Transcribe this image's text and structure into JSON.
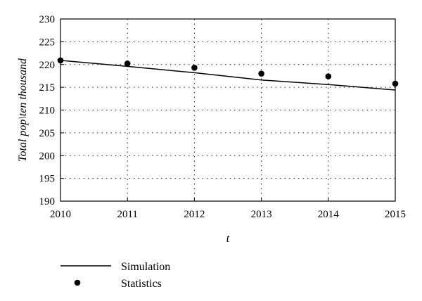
{
  "chart_data": {
    "type": "line",
    "title": "",
    "xlabel": "t",
    "ylabel": "Total pop\\ten thousand",
    "xlim": [
      2010,
      2015
    ],
    "ylim": [
      190,
      230
    ],
    "x_ticks": [
      "2010",
      "2011",
      "2012",
      "2013",
      "2014",
      "2015"
    ],
    "y_ticks": [
      "190",
      "195",
      "200",
      "205",
      "210",
      "215",
      "220",
      "225",
      "230"
    ],
    "grid": "dotted",
    "legend_position": "bottom-left",
    "series": [
      {
        "name": "Simulation",
        "kind": "line",
        "color": "#000000",
        "x": [
          2010,
          2011,
          2012,
          2013,
          2014,
          2015
        ],
        "y": [
          220.9,
          219.6,
          218.2,
          216.6,
          215.6,
          214.4
        ]
      },
      {
        "name": "Statistics",
        "kind": "scatter",
        "color": "#000000",
        "x": [
          2010,
          2011,
          2012,
          2013,
          2014,
          2015
        ],
        "y": [
          220.9,
          220.2,
          219.3,
          218.0,
          217.4,
          215.8
        ]
      }
    ]
  }
}
